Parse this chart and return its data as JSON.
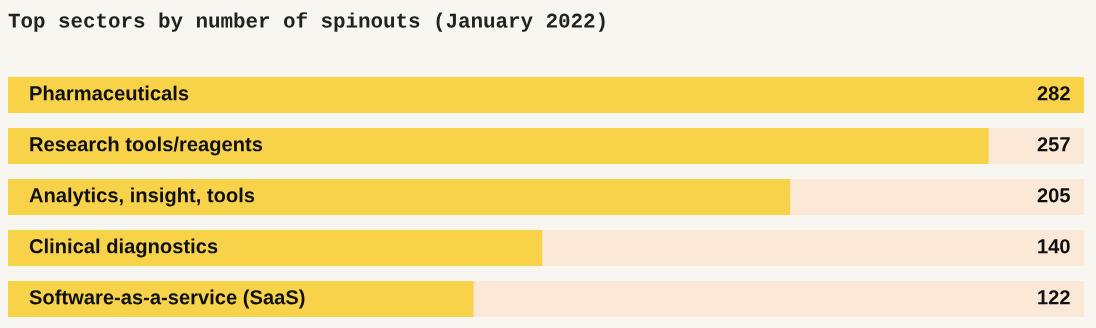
{
  "chart_data": {
    "type": "bar",
    "orientation": "horizontal",
    "title": "Top sectors by number of spinouts (January 2022)",
    "categories": [
      "Pharmaceuticals",
      "Research tools/reagents",
      "Analytics, insight, tools",
      "Clinical diagnostics",
      "Software-as-a-service (SaaS)"
    ],
    "values": [
      282,
      257,
      205,
      140,
      122
    ],
    "color": "#f8d34a",
    "data_labels": true
  }
}
